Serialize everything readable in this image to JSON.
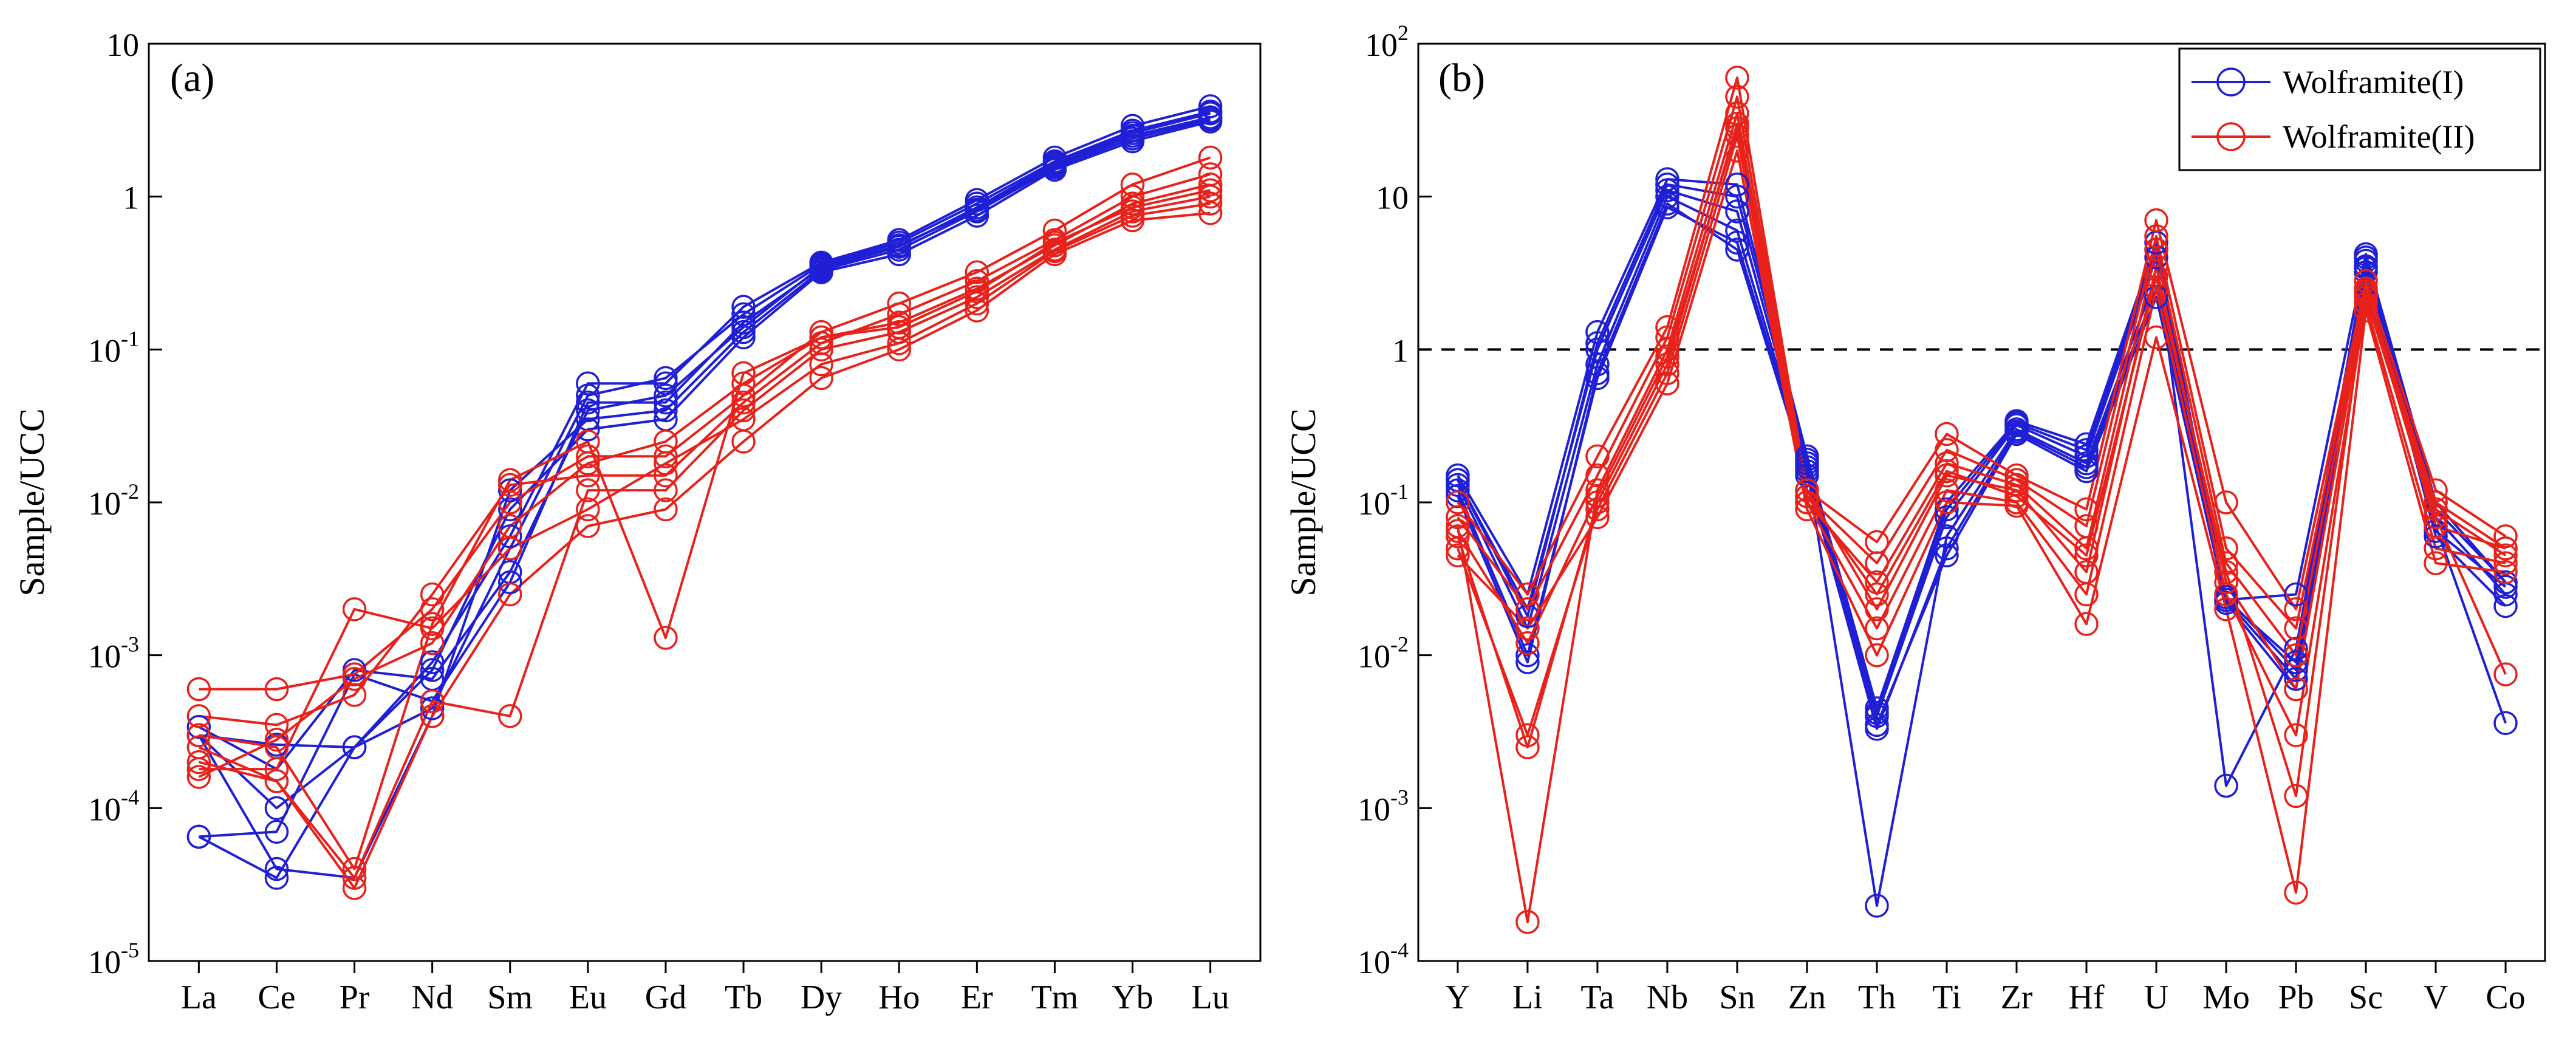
{
  "chart_data": [
    {
      "type": "line",
      "panel_label": "(a)",
      "ylabel": "Sample/UCC",
      "yscale": "log",
      "ylim": [
        1e-05,
        10
      ],
      "y_tick_labels": [
        {
          "base": "10",
          "exp": "-5"
        },
        {
          "base": "10",
          "exp": "-4"
        },
        {
          "base": "10",
          "exp": "-3"
        },
        {
          "base": "10",
          "exp": "-2"
        },
        {
          "base": "10",
          "exp": "-1"
        },
        {
          "base": "1",
          "exp": ""
        },
        {
          "base": "10",
          "exp": ""
        }
      ],
      "categories": [
        "La",
        "Ce",
        "Pr",
        "Nd",
        "Sm",
        "Eu",
        "Gd",
        "Tb",
        "Dy",
        "Ho",
        "Er",
        "Tm",
        "Yb",
        "Lu"
      ],
      "series": [
        {
          "group": "Wolframite(I)",
          "color": "#1f1fd6",
          "values": [
            6.5e-05,
            3.5e-05,
            0.00025,
            0.0009,
            0.006,
            0.06,
            0.06,
            0.19,
            0.37,
            0.52,
            0.95,
            1.8,
            2.9,
            3.9
          ]
        },
        {
          "group": "Wolframite(I)",
          "color": "#1f1fd6",
          "values": [
            6.5e-05,
            7e-05,
            0.00075,
            0.0005,
            0.003,
            0.045,
            0.045,
            0.15,
            0.34,
            0.47,
            0.85,
            1.65,
            2.6,
            3.5
          ]
        },
        {
          "group": "Wolframite(I)",
          "color": "#1f1fd6",
          "values": [
            0.0003,
            0.0001,
            0.00025,
            0.0008,
            0.009,
            0.03,
            0.035,
            0.12,
            0.32,
            0.42,
            0.75,
            1.5,
            2.3,
            3.1
          ]
        },
        {
          "group": "Wolframite(I)",
          "color": "#1f1fd6",
          "values": [
            0.0003,
            4e-05,
            3.5e-05,
            0.0004,
            0.012,
            0.035,
            0.04,
            0.13,
            0.33,
            0.45,
            0.8,
            1.55,
            2.4,
            3.2
          ]
        },
        {
          "group": "Wolframite(I)",
          "color": "#1f1fd6",
          "values": [
            0.0003,
            0.00026,
            0.00025,
            0.00045,
            0.005,
            0.05,
            0.065,
            0.17,
            0.36,
            0.5,
            0.9,
            1.7,
            2.7,
            3.6
          ]
        },
        {
          "group": "Wolframite(I)",
          "color": "#1f1fd6",
          "values": [
            0.00034,
            0.00018,
            0.0008,
            0.0007,
            0.0035,
            0.04,
            0.05,
            0.14,
            0.35,
            0.48,
            0.82,
            1.6,
            2.5,
            3.3
          ]
        },
        {
          "group": "Wolframite(II)",
          "color": "#e8211a",
          "values": [
            0.0006,
            0.0006,
            0.00075,
            0.002,
            0.01,
            0.02,
            0.02,
            0.05,
            0.13,
            0.2,
            0.32,
            0.6,
            1.2,
            1.8
          ]
        },
        {
          "group": "Wolframite(II)",
          "color": "#e8211a",
          "values": [
            0.0004,
            0.00035,
            0.00055,
            0.0025,
            0.013,
            0.015,
            0.015,
            0.045,
            0.11,
            0.17,
            0.28,
            0.52,
            1.0,
            1.4
          ]
        },
        {
          "group": "Wolframite(II)",
          "color": "#e8211a",
          "values": [
            0.0003,
            0.00025,
            4e-05,
            0.0016,
            0.014,
            0.025,
            0.0013,
            0.07,
            0.12,
            0.15,
            0.25,
            0.48,
            0.9,
            1.2
          ]
        },
        {
          "group": "Wolframite(II)",
          "color": "#e8211a",
          "values": [
            0.00025,
            0.00015,
            3.5e-05,
            0.0005,
            0.0004,
            0.012,
            0.012,
            0.04,
            0.1,
            0.13,
            0.22,
            0.45,
            0.8,
            1.0
          ]
        },
        {
          "group": "Wolframite(II)",
          "color": "#e8211a",
          "values": [
            0.0002,
            0.00015,
            3e-05,
            0.0004,
            0.0025,
            0.007,
            0.009,
            0.025,
            0.065,
            0.1,
            0.18,
            0.42,
            0.7,
            0.78
          ]
        },
        {
          "group": "Wolframite(II)",
          "color": "#e8211a",
          "values": [
            0.00018,
            0.00018,
            0.002,
            0.0015,
            0.005,
            0.009,
            0.018,
            0.035,
            0.08,
            0.11,
            0.2,
            0.44,
            0.75,
            0.9
          ]
        },
        {
          "group": "Wolframite(II)",
          "color": "#e8211a",
          "values": [
            0.00016,
            0.00028,
            0.0007,
            0.0012,
            0.007,
            0.018,
            0.025,
            0.06,
            0.12,
            0.14,
            0.24,
            0.5,
            0.85,
            1.1
          ]
        }
      ]
    },
    {
      "type": "line",
      "panel_label": "(b)",
      "ylabel": "Sample/UCC",
      "yscale": "log",
      "ylim": [
        0.0001,
        100
      ],
      "reference_line": {
        "y": 1,
        "style": "dashed"
      },
      "y_tick_labels": [
        {
          "base": "10",
          "exp": "-4"
        },
        {
          "base": "10",
          "exp": "-3"
        },
        {
          "base": "10",
          "exp": "-2"
        },
        {
          "base": "10",
          "exp": "-1"
        },
        {
          "base": "1",
          "exp": ""
        },
        {
          "base": "10",
          "exp": ""
        },
        {
          "base": "10",
          "exp": "2"
        }
      ],
      "categories": [
        "Y",
        "Li",
        "Ta",
        "Nb",
        "Sn",
        "Zn",
        "Th",
        "Ti",
        "Zr",
        "Hf",
        "U",
        "Mo",
        "Pb",
        "Sc",
        "V",
        "Co"
      ],
      "legend": {
        "position": "top-right",
        "items": [
          {
            "label": "Wolframite(I)",
            "color": "#1f1fd6"
          },
          {
            "label": "Wolframite(II)",
            "color": "#e8211a"
          }
        ]
      },
      "series": [
        {
          "group": "Wolframite(I)",
          "color": "#1f1fd6",
          "values": [
            0.15,
            0.025,
            1.3,
            13,
            12,
            0.2,
            0.0045,
            0.1,
            0.34,
            0.24,
            5,
            0.023,
            0.025,
            4.2,
            0.1,
            0.03
          ]
        },
        {
          "group": "Wolframite(I)",
          "color": "#1f1fd6",
          "values": [
            0.14,
            0.02,
            1.0,
            11,
            8,
            0.18,
            0.004,
            0.08,
            0.32,
            0.2,
            4,
            0.0014,
            0.011,
            3.8,
            0.08,
            0.025
          ]
        },
        {
          "group": "Wolframite(I)",
          "color": "#1f1fd6",
          "values": [
            0.13,
            0.015,
            0.8,
            10,
            6,
            0.17,
            0.00023,
            0.06,
            0.3,
            0.18,
            3,
            0.024,
            0.008,
            3.5,
            0.07,
            0.0036
          ]
        },
        {
          "group": "Wolframite(I)",
          "color": "#1f1fd6",
          "values": [
            0.12,
            0.01,
            0.65,
            8.5,
            5,
            0.16,
            0.0035,
            0.045,
            0.28,
            0.16,
            2.2,
            0.022,
            0.006,
            3.2,
            0.06,
            0.021
          ]
        },
        {
          "group": "Wolframite(I)",
          "color": "#1f1fd6",
          "values": [
            0.11,
            0.009,
            0.7,
            9,
            4.5,
            0.15,
            0.0033,
            0.05,
            0.29,
            0.17,
            2.5,
            0.023,
            0.007,
            3.4,
            0.065,
            0.028
          ]
        },
        {
          "group": "Wolframite(I)",
          "color": "#1f1fd6",
          "values": [
            0.14,
            0.018,
            1.1,
            12,
            10,
            0.19,
            0.0042,
            0.09,
            0.33,
            0.22,
            4.5,
            0.023,
            0.009,
            4.0,
            0.09,
            0.03
          ]
        },
        {
          "group": "Wolframite(II)",
          "color": "#e8211a",
          "values": [
            0.1,
            0.025,
            0.2,
            1.4,
            60,
            0.12,
            0.055,
            0.28,
            0.15,
            0.09,
            7,
            0.1,
            0.02,
            2.8,
            0.12,
            0.06
          ]
        },
        {
          "group": "Wolframite(II)",
          "color": "#e8211a",
          "values": [
            0.08,
            0.02,
            0.15,
            1.2,
            45,
            0.11,
            0.04,
            0.22,
            0.14,
            0.07,
            5.5,
            0.05,
            0.015,
            2.5,
            0.1,
            0.05
          ]
        },
        {
          "group": "Wolframite(II)",
          "color": "#e8211a",
          "values": [
            0.07,
            0.00018,
            0.12,
            1.0,
            35,
            0.1,
            0.03,
            0.18,
            0.13,
            0.05,
            4.5,
            0.04,
            0.01,
            2.3,
            0.09,
            0.045
          ]
        },
        {
          "group": "Wolframite(II)",
          "color": "#e8211a",
          "values": [
            0.06,
            0.0025,
            0.1,
            0.8,
            30,
            0.12,
            0.02,
            0.15,
            0.12,
            0.035,
            3.5,
            0.03,
            0.006,
            2.2,
            0.08,
            0.0075
          ]
        },
        {
          "group": "Wolframite(II)",
          "color": "#e8211a",
          "values": [
            0.05,
            0.003,
            0.09,
            0.7,
            25,
            0.1,
            0.015,
            0.12,
            0.1,
            0.025,
            2.5,
            0.025,
            0.003,
            2.0,
            0.05,
            0.04
          ]
        },
        {
          "group": "Wolframite(II)",
          "color": "#e8211a",
          "values": [
            0.045,
            0.015,
            0.08,
            0.6,
            20,
            0.09,
            0.01,
            0.1,
            0.095,
            0.016,
            1.2,
            0.02,
            0.00028,
            1.8,
            0.04,
            0.035
          ]
        },
        {
          "group": "Wolframite(II)",
          "color": "#e8211a",
          "values": [
            0.065,
            0.012,
            0.11,
            0.9,
            28,
            0.11,
            0.025,
            0.16,
            0.11,
            0.045,
            3,
            0.035,
            0.0012,
            2.4,
            0.07,
            0.05
          ]
        }
      ]
    }
  ]
}
